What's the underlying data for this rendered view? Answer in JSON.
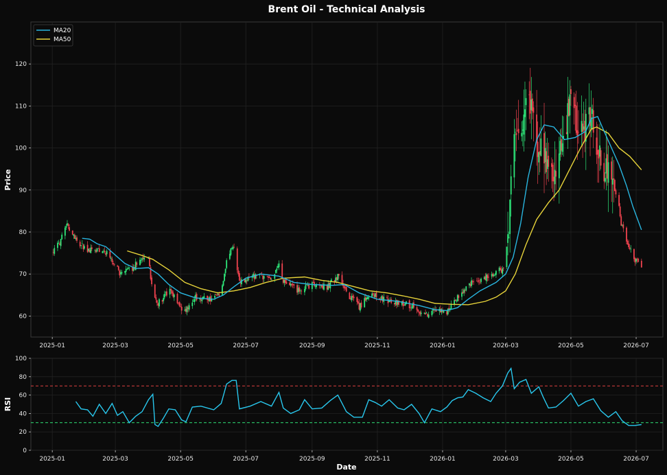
{
  "chart_data": [
    {
      "type": "candlestick",
      "title": "Brent Oil - Technical Analysis",
      "ylabel": "Price",
      "ylim": [
        55,
        130
      ],
      "yticks": [
        60,
        70,
        80,
        90,
        100,
        110,
        120
      ],
      "xticks": [
        "2025-01",
        "2025-03",
        "2025-05",
        "2025-07",
        "2025-09",
        "2025-11",
        "2026-01",
        "2026-03",
        "2026-05",
        "2026-07"
      ],
      "xlim": [
        "2024-12-12",
        "2026-07-26"
      ],
      "grid": true,
      "legend": {
        "placement": "top-left",
        "entries": [
          "MA20",
          "MA50"
        ]
      },
      "colors": {
        "up": "#2ee87a",
        "down": "#f0434f",
        "ma20": "#29b6e0",
        "ma50": "#e8d43a",
        "background": "#0b0b0b",
        "grid": "#222222"
      },
      "price_anchors": [
        [
          "2025-01-02",
          75.5
        ],
        [
          "2025-01-08",
          77.5
        ],
        [
          "2025-01-15",
          81.5
        ],
        [
          "2025-01-20",
          79.5
        ],
        [
          "2025-01-27",
          77
        ],
        [
          "2025-02-05",
          75.5
        ],
        [
          "2025-02-15",
          76
        ],
        [
          "2025-02-25",
          74
        ],
        [
          "2025-03-05",
          70
        ],
        [
          "2025-03-15",
          71
        ],
        [
          "2025-03-25",
          73.5
        ],
        [
          "2025-04-01",
          74
        ],
        [
          "2025-04-05",
          65
        ],
        [
          "2025-04-10",
          63
        ],
        [
          "2025-04-20",
          66
        ],
        [
          "2025-05-05",
          61
        ],
        [
          "2025-05-15",
          64.5
        ],
        [
          "2025-06-01",
          64
        ],
        [
          "2025-06-08",
          66
        ],
        [
          "2025-06-13",
          73
        ],
        [
          "2025-06-20",
          77
        ],
        [
          "2025-06-25",
          68
        ],
        [
          "2025-07-10",
          69.5
        ],
        [
          "2025-07-25",
          69
        ],
        [
          "2025-08-01",
          72
        ],
        [
          "2025-08-05",
          68
        ],
        [
          "2025-08-20",
          66
        ],
        [
          "2025-09-01",
          67.5
        ],
        [
          "2025-09-15",
          67
        ],
        [
          "2025-09-25",
          69.5
        ],
        [
          "2025-10-05",
          65
        ],
        [
          "2025-10-15",
          62
        ],
        [
          "2025-10-25",
          65.5
        ],
        [
          "2025-11-05",
          64
        ],
        [
          "2025-11-20",
          63
        ],
        [
          "2025-12-05",
          62.5
        ],
        [
          "2025-12-15",
          60
        ],
        [
          "2025-12-25",
          61.5
        ],
        [
          "2026-01-05",
          61
        ],
        [
          "2026-01-12",
          64
        ],
        [
          "2026-01-20",
          65.5
        ],
        [
          "2026-01-28",
          68
        ],
        [
          "2026-02-10",
          69
        ],
        [
          "2026-02-25",
          71
        ],
        [
          "2026-03-01",
          73
        ],
        [
          "2026-03-05",
          85
        ],
        [
          "2026-03-08",
          102
        ],
        [
          "2026-03-12",
          104
        ],
        [
          "2026-03-18",
          108
        ],
        [
          "2026-03-25",
          110
        ],
        [
          "2026-04-01",
          100
        ],
        [
          "2026-04-05",
          98
        ],
        [
          "2026-04-10",
          95
        ],
        [
          "2026-04-15",
          91
        ],
        [
          "2026-04-22",
          100
        ],
        [
          "2026-04-28",
          108
        ],
        [
          "2026-05-02",
          116
        ],
        [
          "2026-05-06",
          106
        ],
        [
          "2026-05-12",
          103
        ],
        [
          "2026-05-18",
          109
        ],
        [
          "2026-05-22",
          106
        ],
        [
          "2026-05-26",
          100
        ],
        [
          "2026-05-30",
          95
        ],
        [
          "2026-06-05",
          94
        ],
        [
          "2026-06-10",
          90
        ],
        [
          "2026-06-14",
          88
        ],
        [
          "2026-06-17",
          82
        ],
        [
          "2026-06-22",
          78
        ],
        [
          "2026-06-28",
          74
        ],
        [
          "2026-07-06",
          72
        ]
      ],
      "ma20": [
        [
          "2025-01-29",
          78.5
        ],
        [
          "2025-02-05",
          78.3
        ],
        [
          "2025-02-12",
          77.2
        ],
        [
          "2025-02-20",
          76.5
        ],
        [
          "2025-03-01",
          74.5
        ],
        [
          "2025-03-10",
          72.5
        ],
        [
          "2025-03-20",
          71.3
        ],
        [
          "2025-04-01",
          71.5
        ],
        [
          "2025-04-10",
          70
        ],
        [
          "2025-04-20",
          67.5
        ],
        [
          "2025-05-01",
          65.5
        ],
        [
          "2025-05-15",
          64.3
        ],
        [
          "2025-06-01",
          64
        ],
        [
          "2025-06-10",
          65
        ],
        [
          "2025-06-20",
          67
        ],
        [
          "2025-07-01",
          69
        ],
        [
          "2025-07-15",
          70
        ],
        [
          "2025-08-01",
          69.5
        ],
        [
          "2025-08-15",
          68
        ],
        [
          "2025-09-01",
          67.5
        ],
        [
          "2025-09-20",
          67.3
        ],
        [
          "2025-10-01",
          67.5
        ],
        [
          "2025-10-15",
          65.5
        ],
        [
          "2025-11-01",
          64
        ],
        [
          "2025-11-20",
          63.5
        ],
        [
          "2025-12-10",
          62.5
        ],
        [
          "2025-12-25",
          61.5
        ],
        [
          "2026-01-05",
          61.3
        ],
        [
          "2026-01-15",
          62
        ],
        [
          "2026-01-25",
          64
        ],
        [
          "2026-02-05",
          66
        ],
        [
          "2026-02-20",
          68
        ],
        [
          "2026-03-01",
          70
        ],
        [
          "2026-03-08",
          74
        ],
        [
          "2026-03-15",
          82
        ],
        [
          "2026-03-22",
          93
        ],
        [
          "2026-03-30",
          102
        ],
        [
          "2026-04-06",
          105.5
        ],
        [
          "2026-04-15",
          105
        ],
        [
          "2026-04-25",
          102
        ],
        [
          "2026-05-05",
          102.5
        ],
        [
          "2026-05-15",
          104
        ],
        [
          "2026-05-20",
          107
        ],
        [
          "2026-05-26",
          107.5
        ],
        [
          "2026-06-01",
          104
        ],
        [
          "2026-06-08",
          100
        ],
        [
          "2026-06-15",
          96
        ],
        [
          "2026-06-22",
          91
        ],
        [
          "2026-06-28",
          86
        ],
        [
          "2026-07-06",
          80.5
        ]
      ],
      "ma50": [
        [
          "2025-03-12",
          75.5
        ],
        [
          "2025-03-25",
          74.5
        ],
        [
          "2025-04-05",
          73.5
        ],
        [
          "2025-04-20",
          71
        ],
        [
          "2025-05-05",
          68
        ],
        [
          "2025-05-20",
          66.5
        ],
        [
          "2025-06-05",
          65.5
        ],
        [
          "2025-06-20",
          66
        ],
        [
          "2025-07-05",
          66.8
        ],
        [
          "2025-07-20",
          68
        ],
        [
          "2025-08-05",
          69
        ],
        [
          "2025-08-25",
          69.3
        ],
        [
          "2025-09-10",
          68.5
        ],
        [
          "2025-09-25",
          68
        ],
        [
          "2025-10-10",
          67
        ],
        [
          "2025-10-25",
          66
        ],
        [
          "2025-11-10",
          65.5
        ],
        [
          "2025-11-25",
          64.8
        ],
        [
          "2025-12-10",
          64
        ],
        [
          "2025-12-25",
          63
        ],
        [
          "2026-01-10",
          62.8
        ],
        [
          "2026-01-25",
          62.7
        ],
        [
          "2026-02-10",
          63.5
        ],
        [
          "2026-02-20",
          64.5
        ],
        [
          "2026-03-01",
          66
        ],
        [
          "2026-03-10",
          70
        ],
        [
          "2026-03-20",
          77
        ],
        [
          "2026-03-30",
          83
        ],
        [
          "2026-04-10",
          87
        ],
        [
          "2026-04-20",
          90
        ],
        [
          "2026-04-30",
          95
        ],
        [
          "2026-05-10",
          100
        ],
        [
          "2026-05-20",
          104.5
        ],
        [
          "2026-05-25",
          105
        ],
        [
          "2026-06-05",
          103.5
        ],
        [
          "2026-06-15",
          100
        ],
        [
          "2026-06-25",
          98
        ],
        [
          "2026-07-06",
          94.8
        ]
      ]
    },
    {
      "type": "line",
      "ylabel": "RSI",
      "xlabel": "Date",
      "ylim": [
        0,
        100
      ],
      "yticks": [
        0,
        20,
        40,
        60,
        80,
        100
      ],
      "xticks": [
        "2025-01",
        "2025-03",
        "2025-05",
        "2025-07",
        "2025-09",
        "2025-11",
        "2026-01",
        "2026-03",
        "2026-05",
        "2026-07"
      ],
      "xlim": [
        "2024-12-12",
        "2026-07-26"
      ],
      "grid": true,
      "thresholds": [
        {
          "value": 70,
          "color": "#e04040"
        },
        {
          "value": 30,
          "color": "#2ee87a"
        }
      ],
      "colors": {
        "line": "#29c8ee"
      },
      "rsi": [
        [
          "2025-01-23",
          53
        ],
        [
          "2025-01-28",
          45
        ],
        [
          "2025-02-03",
          44
        ],
        [
          "2025-02-08",
          37
        ],
        [
          "2025-02-14",
          50
        ],
        [
          "2025-02-20",
          40
        ],
        [
          "2025-02-26",
          51
        ],
        [
          "2025-03-03",
          38
        ],
        [
          "2025-03-08",
          42
        ],
        [
          "2025-03-14",
          30
        ],
        [
          "2025-03-20",
          37
        ],
        [
          "2025-03-26",
          42
        ],
        [
          "2025-04-01",
          55
        ],
        [
          "2025-04-05",
          61
        ],
        [
          "2025-04-07",
          28
        ],
        [
          "2025-04-10",
          26
        ],
        [
          "2025-04-15",
          35
        ],
        [
          "2025-04-20",
          45
        ],
        [
          "2025-04-26",
          44
        ],
        [
          "2025-05-02",
          33
        ],
        [
          "2025-05-06",
          31
        ],
        [
          "2025-05-12",
          47
        ],
        [
          "2025-05-20",
          48
        ],
        [
          "2025-06-01",
          44
        ],
        [
          "2025-06-08",
          51
        ],
        [
          "2025-06-13",
          72
        ],
        [
          "2025-06-18",
          76
        ],
        [
          "2025-06-22",
          76
        ],
        [
          "2025-06-25",
          45
        ],
        [
          "2025-07-05",
          48
        ],
        [
          "2025-07-15",
          53
        ],
        [
          "2025-07-25",
          48
        ],
        [
          "2025-08-01",
          63
        ],
        [
          "2025-08-05",
          46
        ],
        [
          "2025-08-12",
          40
        ],
        [
          "2025-08-20",
          44
        ],
        [
          "2025-08-25",
          55
        ],
        [
          "2025-09-01",
          45
        ],
        [
          "2025-09-10",
          46
        ],
        [
          "2025-09-18",
          54
        ],
        [
          "2025-09-25",
          60
        ],
        [
          "2025-10-03",
          42
        ],
        [
          "2025-10-10",
          36
        ],
        [
          "2025-10-18",
          36
        ],
        [
          "2025-10-24",
          55
        ],
        [
          "2025-10-30",
          52
        ],
        [
          "2025-11-05",
          48
        ],
        [
          "2025-11-12",
          55
        ],
        [
          "2025-11-20",
          46
        ],
        [
          "2025-11-26",
          44
        ],
        [
          "2025-12-03",
          50
        ],
        [
          "2025-12-10",
          40
        ],
        [
          "2025-12-15",
          30
        ],
        [
          "2025-12-22",
          45
        ],
        [
          "2025-12-30",
          42
        ],
        [
          "2026-01-05",
          47
        ],
        [
          "2026-01-10",
          54
        ],
        [
          "2026-01-15",
          57
        ],
        [
          "2026-01-20",
          58
        ],
        [
          "2026-01-25",
          66
        ],
        [
          "2026-02-01",
          62
        ],
        [
          "2026-02-08",
          57
        ],
        [
          "2026-02-15",
          53
        ],
        [
          "2026-02-20",
          62
        ],
        [
          "2026-02-26",
          70
        ],
        [
          "2026-03-03",
          84
        ],
        [
          "2026-03-06",
          89
        ],
        [
          "2026-03-09",
          67
        ],
        [
          "2026-03-14",
          74
        ],
        [
          "2026-03-20",
          77
        ],
        [
          "2026-03-25",
          62
        ],
        [
          "2026-04-01",
          69
        ],
        [
          "2026-04-05",
          58
        ],
        [
          "2026-04-10",
          46
        ],
        [
          "2026-04-17",
          47
        ],
        [
          "2026-04-24",
          54
        ],
        [
          "2026-05-01",
          62
        ],
        [
          "2026-05-08",
          48
        ],
        [
          "2026-05-15",
          53
        ],
        [
          "2026-05-22",
          56
        ],
        [
          "2026-05-29",
          43
        ],
        [
          "2026-06-05",
          36
        ],
        [
          "2026-06-12",
          42
        ],
        [
          "2026-06-18",
          32
        ],
        [
          "2026-06-24",
          27
        ],
        [
          "2026-06-30",
          27
        ],
        [
          "2026-07-06",
          28
        ]
      ]
    }
  ]
}
